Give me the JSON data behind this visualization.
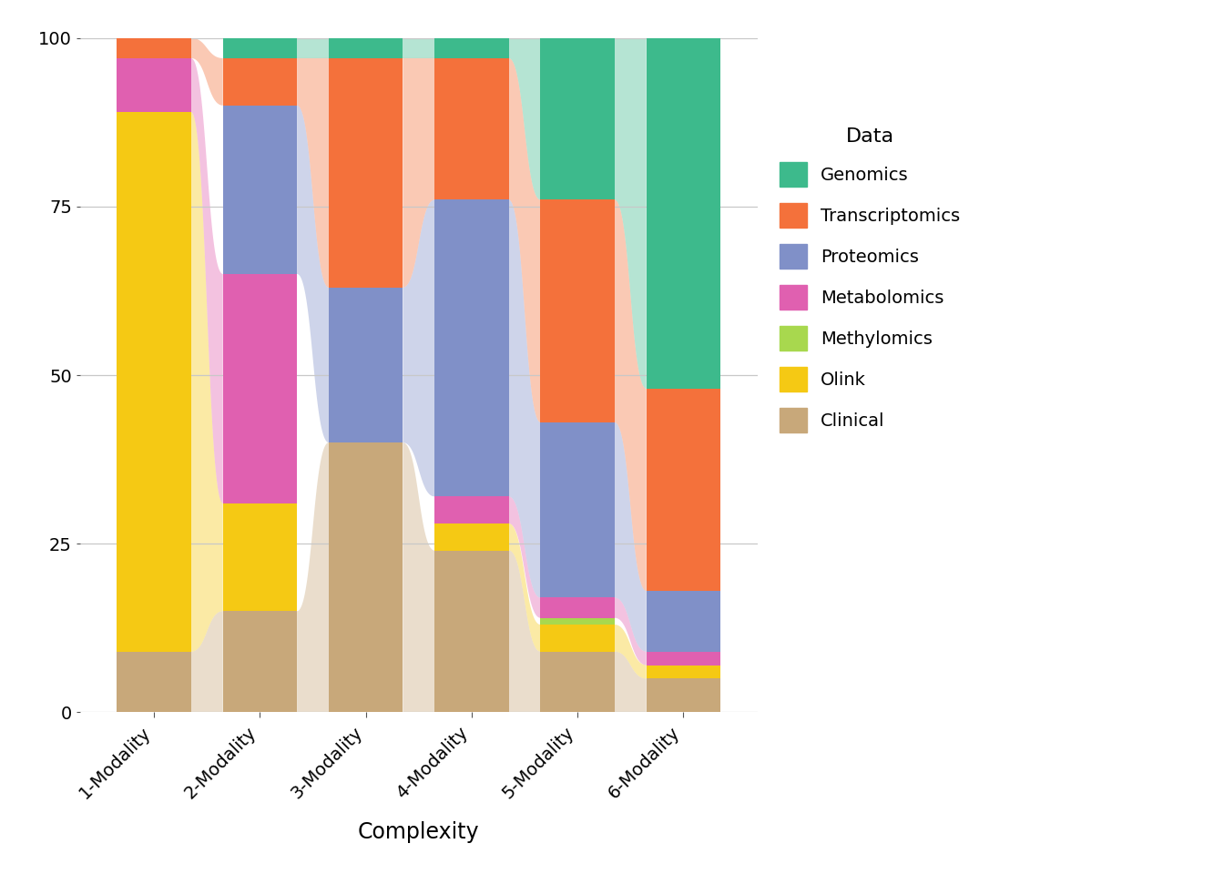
{
  "categories": [
    "1-Modality",
    "2-Modality",
    "3-Modality",
    "4-Modality",
    "5-Modality",
    "6-Modality"
  ],
  "modalities": [
    "Genomics",
    "Transcriptomics",
    "Proteomics",
    "Metabolomics",
    "Methylomics",
    "Olink",
    "Clinical"
  ],
  "colors": {
    "Genomics": "#3dba8c",
    "Transcriptomics": "#f4713b",
    "Proteomics": "#8090c8",
    "Metabolomics": "#e060b0",
    "Methylomics": "#a8d84e",
    "Olink": "#f5c914",
    "Clinical": "#c8a87a"
  },
  "bar_data": {
    "1-Modality": {
      "Clinical": 9,
      "Olink": 80,
      "Metabolomics": 8,
      "Transcriptomics": 3,
      "Proteomics": 0,
      "Genomics": 0,
      "Methylomics": 0
    },
    "2-Modality": {
      "Clinical": 15,
      "Olink": 16,
      "Metabolomics": 34,
      "Transcriptomics": 7,
      "Proteomics": 25,
      "Genomics": 3,
      "Methylomics": 0
    },
    "3-Modality": {
      "Clinical": 40,
      "Olink": 0,
      "Metabolomics": 0,
      "Transcriptomics": 34,
      "Proteomics": 23,
      "Genomics": 3,
      "Methylomics": 0
    },
    "4-Modality": {
      "Clinical": 24,
      "Olink": 4,
      "Metabolomics": 4,
      "Transcriptomics": 21,
      "Proteomics": 44,
      "Genomics": 3,
      "Methylomics": 0
    },
    "5-Modality": {
      "Clinical": 9,
      "Olink": 4,
      "Metabolomics": 3,
      "Transcriptomics": 33,
      "Proteomics": 26,
      "Genomics": 24,
      "Methylomics": 1
    },
    "6-Modality": {
      "Clinical": 5,
      "Olink": 2,
      "Metabolomics": 2,
      "Transcriptomics": 30,
      "Proteomics": 9,
      "Genomics": 52,
      "Methylomics": 0
    }
  },
  "draw_order": [
    "Clinical",
    "Olink",
    "Methylomics",
    "Metabolomics",
    "Proteomics",
    "Transcriptomics",
    "Genomics"
  ],
  "title": "Complexity",
  "ylim": [
    0,
    100
  ],
  "background_color": "#ffffff",
  "grid_color": "#c8c8c8"
}
